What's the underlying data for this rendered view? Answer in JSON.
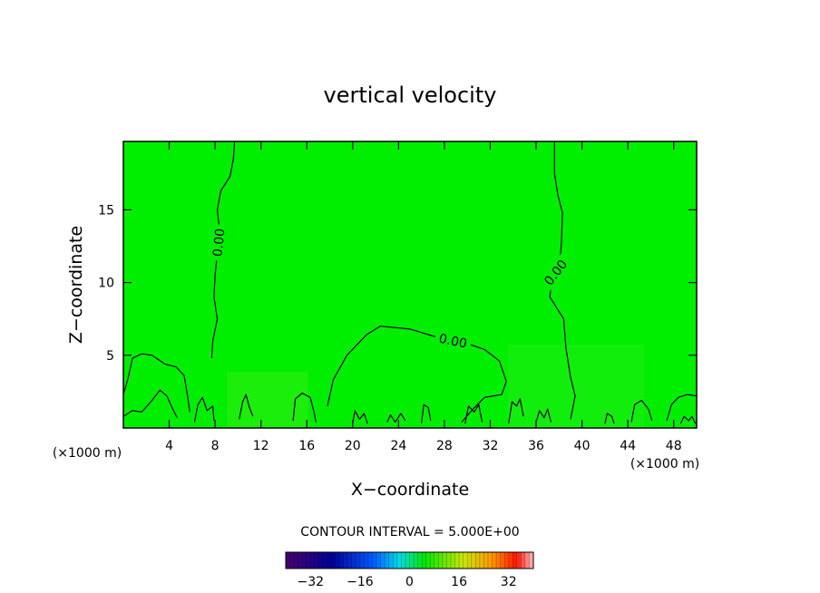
{
  "chart_data": {
    "type": "heatmap",
    "title": "vertical velocity",
    "xlabel": "X−coordinate",
    "ylabel": "Z−coordinate",
    "x_unit": "(×1000 m)",
    "y_unit": "(×1000 m)",
    "xlim": [
      0,
      50
    ],
    "ylim": [
      0,
      19.7
    ],
    "x_ticks": [
      4,
      8,
      12,
      16,
      20,
      24,
      28,
      32,
      36,
      40,
      44,
      48
    ],
    "y_ticks": [
      5,
      10,
      15
    ],
    "background_value": 0,
    "contour_interval_label": "CONTOUR INTERVAL = 5.000E+00",
    "contour_label": "0.00",
    "contours": [
      {
        "label": "0.00",
        "points": [
          [
            9.7,
            19.7
          ],
          [
            9.6,
            18.5
          ],
          [
            9.3,
            17.3
          ],
          [
            8.5,
            16.3
          ],
          [
            8.2,
            15
          ],
          [
            8.4,
            13.5
          ],
          [
            8.2,
            12
          ],
          [
            8.0,
            10.5
          ],
          [
            7.9,
            9
          ],
          [
            8.2,
            7.5
          ],
          [
            7.8,
            6
          ],
          [
            7.7,
            4.8
          ]
        ]
      },
      {
        "label": "0.00",
        "points": [
          [
            37.6,
            19.7
          ],
          [
            37.6,
            17.5
          ],
          [
            37.9,
            16
          ],
          [
            38.3,
            14.8
          ],
          [
            38.2,
            12.5
          ],
          [
            38.0,
            11
          ],
          [
            37.4,
            10.4
          ],
          [
            37.2,
            9
          ],
          [
            38.4,
            7.5
          ],
          [
            38.6,
            5.5
          ],
          [
            39.0,
            3.5
          ],
          [
            39.4,
            2.2
          ],
          [
            39.0,
            0.6
          ]
        ]
      },
      {
        "label": "0.00",
        "points": [
          [
            17.8,
            1.5
          ],
          [
            18.3,
            3.3
          ],
          [
            19.5,
            5
          ],
          [
            21.2,
            6.4
          ],
          [
            22.4,
            7
          ],
          [
            25.0,
            6.8
          ],
          [
            27.5,
            6.2
          ],
          [
            30.0,
            5.8
          ],
          [
            31.5,
            5.4
          ],
          [
            32.8,
            4.6
          ],
          [
            33.4,
            3.2
          ],
          [
            33.0,
            2.3
          ],
          [
            31.5,
            2.1
          ],
          [
            30.5,
            1.3
          ],
          [
            29.5,
            0.4
          ]
        ]
      },
      {
        "points": [
          [
            0,
            2.3
          ],
          [
            0.4,
            3.4
          ],
          [
            0.8,
            4.8
          ],
          [
            1.6,
            5.1
          ],
          [
            2.5,
            5
          ],
          [
            3.6,
            4.4
          ],
          [
            4.6,
            4.2
          ],
          [
            5.3,
            3.6
          ],
          [
            5.6,
            2.2
          ],
          [
            5.8,
            1.1
          ]
        ]
      },
      {
        "points": [
          [
            0,
            0.8
          ],
          [
            0.8,
            1.2
          ],
          [
            1.6,
            1.1
          ],
          [
            2.4,
            1.8
          ],
          [
            3.2,
            2.6
          ],
          [
            3.8,
            2.2
          ],
          [
            4.3,
            1.3
          ],
          [
            4.7,
            0.7
          ]
        ]
      },
      {
        "points": [
          [
            6.2,
            0.4
          ],
          [
            6.5,
            1.6
          ],
          [
            6.9,
            2.1
          ],
          [
            7.3,
            1.2
          ],
          [
            7.8,
            1.5
          ],
          [
            7.9,
            0.5
          ]
        ]
      },
      {
        "points": [
          [
            10.1,
            0.6
          ],
          [
            10.4,
            1.8
          ],
          [
            10.7,
            2.3
          ],
          [
            11.0,
            1.4
          ],
          [
            11.3,
            0.8
          ]
        ]
      },
      {
        "points": [
          [
            14.8,
            0.5
          ],
          [
            15.0,
            2.0
          ],
          [
            15.6,
            2.4
          ],
          [
            16.3,
            2.1
          ],
          [
            16.6,
            1.2
          ],
          [
            16.8,
            0.4
          ]
        ]
      },
      {
        "points": [
          [
            20.0,
            0.3
          ],
          [
            20.2,
            1.2
          ],
          [
            20.6,
            0.6
          ],
          [
            21.0,
            1.0
          ],
          [
            21.3,
            0.3
          ]
        ]
      },
      {
        "points": [
          [
            23.0,
            0.4
          ],
          [
            23.3,
            0.9
          ],
          [
            23.7,
            0.4
          ],
          [
            24.2,
            1.0
          ],
          [
            24.6,
            0.5
          ]
        ]
      },
      {
        "points": [
          [
            26.0,
            0.3
          ],
          [
            26.2,
            1.6
          ],
          [
            26.6,
            1.4
          ],
          [
            26.8,
            0.5
          ]
        ]
      },
      {
        "points": [
          [
            29.8,
            0.3
          ],
          [
            30.1,
            1.5
          ],
          [
            30.6,
            1.1
          ],
          [
            31.0,
            1.6
          ],
          [
            31.3,
            0.4
          ]
        ]
      },
      {
        "points": [
          [
            33.6,
            0.3
          ],
          [
            33.9,
            1.8
          ],
          [
            34.3,
            1.5
          ],
          [
            34.6,
            2.0
          ],
          [
            34.9,
            0.8
          ]
        ]
      },
      {
        "points": [
          [
            36.0,
            0.4
          ],
          [
            36.3,
            1.2
          ],
          [
            36.7,
            0.7
          ],
          [
            37.0,
            1.3
          ],
          [
            37.3,
            0.4
          ]
        ]
      },
      {
        "points": [
          [
            42.0,
            0.3
          ],
          [
            42.2,
            1.0
          ],
          [
            42.6,
            0.8
          ],
          [
            42.8,
            0.3
          ]
        ]
      },
      {
        "points": [
          [
            44.3,
            0.4
          ],
          [
            44.6,
            1.6
          ],
          [
            45.2,
            1.9
          ],
          [
            45.8,
            1.3
          ],
          [
            46.1,
            0.5
          ]
        ]
      },
      {
        "points": [
          [
            47.4,
            0.5
          ],
          [
            47.8,
            1.6
          ],
          [
            48.4,
            2.1
          ],
          [
            49.2,
            2.3
          ],
          [
            50,
            2.2
          ]
        ]
      },
      {
        "points": [
          [
            48.6,
            0.3
          ],
          [
            48.9,
            0.8
          ],
          [
            49.3,
            0.5
          ],
          [
            49.6,
            0.8
          ],
          [
            49.9,
            0.3
          ]
        ]
      }
    ],
    "colorbar": {
      "ticks": [
        -32,
        -16,
        0,
        16,
        32
      ],
      "tick_labels": [
        "−32",
        "−16",
        "0",
        "16",
        "32"
      ],
      "range": [
        -40,
        40
      ]
    }
  }
}
